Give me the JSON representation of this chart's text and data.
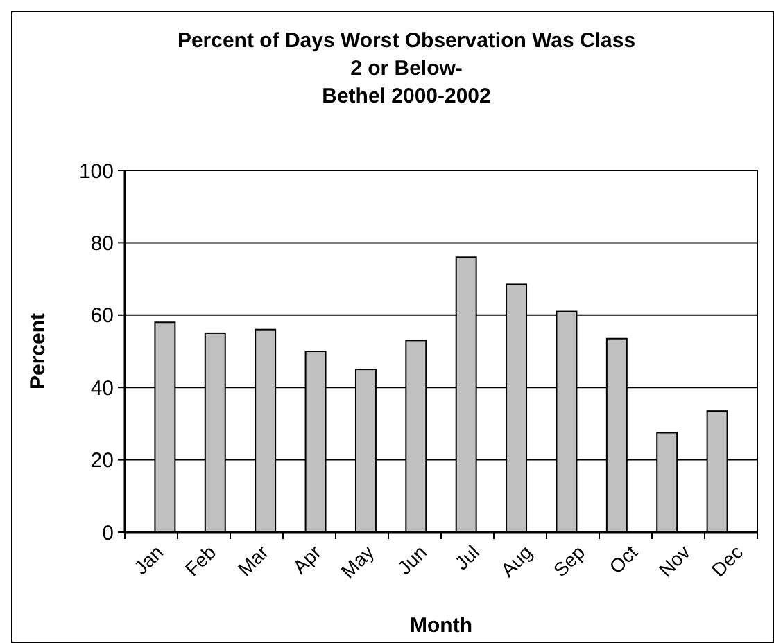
{
  "chart_data": {
    "type": "bar",
    "title": "Percent of Days Worst Observation Was Class\n2 or Below-\nBethel 2000-2002",
    "xlabel": "Month",
    "ylabel": "Percent",
    "categories": [
      "Jan",
      "Feb",
      "Mar",
      "Apr",
      "May",
      "Jun",
      "Jul",
      "Aug",
      "Sep",
      "Oct",
      "Nov",
      "Dec"
    ],
    "values": [
      58,
      55,
      56,
      50,
      45,
      53,
      76,
      68.5,
      61,
      53.5,
      27.5,
      33.5
    ],
    "color": "#c0c0c0",
    "ylim": [
      0,
      100
    ],
    "yticks": [
      0,
      20,
      40,
      60,
      80,
      100
    ],
    "grid": "y"
  }
}
